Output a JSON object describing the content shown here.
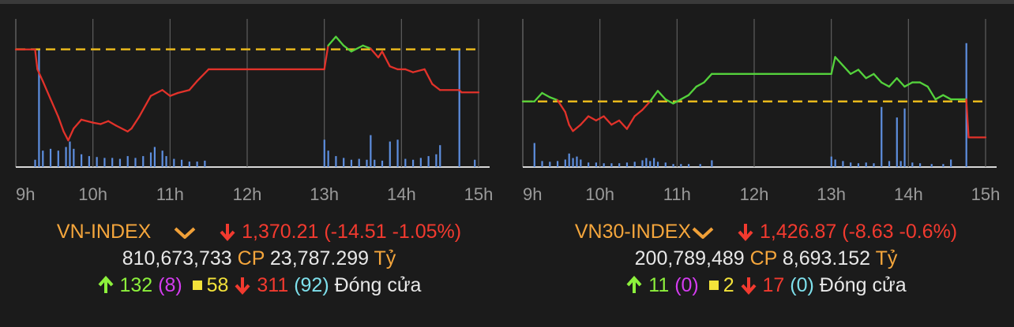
{
  "colors": {
    "background": "#1b1b1b",
    "grid": "#5e5e5e",
    "reference": "#e8b81c",
    "up": "#54d23c",
    "down": "#e2322a",
    "volume": "#5e8fe0"
  },
  "panels": [
    {
      "id": "vn",
      "index_name": "VN-INDEX",
      "value": "1,370.21",
      "change": "(-14.51 -1.05%)",
      "volume": "810,673,733",
      "cp_label": "CP",
      "turnover": "23,787.299",
      "unit": "Tỷ",
      "advances": "132",
      "ceiling": "(8)",
      "unchanged": "58",
      "declines": "311",
      "floor": "(92)",
      "status": "Đóng cửa"
    },
    {
      "id": "vn30",
      "index_name": "VN30-INDEX",
      "value": "1,426.87",
      "change": "(-8.63 -0.6%)",
      "volume": "200,789,489",
      "cp_label": "CP",
      "turnover": "8,693.152",
      "unit": "Tỷ",
      "advances": "11",
      "ceiling": "(0)",
      "unchanged": "2",
      "declines": "17",
      "floor": "(0)",
      "status": "Đóng cửa"
    }
  ],
  "chart_data": [
    {
      "type": "line",
      "title": "VN-INDEX",
      "x_ticks": [
        "9h",
        "10h",
        "11h",
        "12h",
        "13h",
        "14h",
        "15h"
      ],
      "reference": 1384.72,
      "close": 1370.21,
      "price": [
        [
          9.0,
          1384.7
        ],
        [
          9.25,
          1384.7
        ],
        [
          9.28,
          1378
        ],
        [
          9.35,
          1374
        ],
        [
          9.45,
          1368
        ],
        [
          9.55,
          1362
        ],
        [
          9.62,
          1357
        ],
        [
          9.68,
          1354
        ],
        [
          9.75,
          1358
        ],
        [
          9.85,
          1361
        ],
        [
          10.0,
          1360
        ],
        [
          10.1,
          1359.5
        ],
        [
          10.2,
          1360.5
        ],
        [
          10.3,
          1359
        ],
        [
          10.45,
          1357
        ],
        [
          10.5,
          1358
        ],
        [
          10.6,
          1362
        ],
        [
          10.75,
          1369
        ],
        [
          10.9,
          1371
        ],
        [
          11.0,
          1369
        ],
        [
          11.1,
          1370
        ],
        [
          11.25,
          1371
        ],
        [
          11.35,
          1374
        ],
        [
          11.5,
          1378
        ],
        [
          12.0,
          1378
        ],
        [
          13.0,
          1378
        ],
        [
          13.05,
          1386
        ],
        [
          13.15,
          1389
        ],
        [
          13.25,
          1386
        ],
        [
          13.35,
          1384
        ],
        [
          13.5,
          1386
        ],
        [
          13.6,
          1385
        ],
        [
          13.7,
          1382
        ],
        [
          13.75,
          1384
        ],
        [
          13.85,
          1379
        ],
        [
          13.95,
          1378
        ],
        [
          14.05,
          1378
        ],
        [
          14.15,
          1377
        ],
        [
          14.3,
          1378
        ],
        [
          14.4,
          1373
        ],
        [
          14.5,
          1371
        ],
        [
          14.75,
          1371
        ],
        [
          14.78,
          1370.2
        ],
        [
          15.0,
          1370.2
        ]
      ],
      "volume": [
        [
          9.25,
          8
        ],
        [
          9.3,
          130
        ],
        [
          9.35,
          18
        ],
        [
          9.45,
          20
        ],
        [
          9.55,
          18
        ],
        [
          9.65,
          22
        ],
        [
          9.7,
          28
        ],
        [
          9.75,
          20
        ],
        [
          9.85,
          14
        ],
        [
          9.95,
          12
        ],
        [
          10.05,
          11
        ],
        [
          10.15,
          10
        ],
        [
          10.25,
          10
        ],
        [
          10.35,
          9
        ],
        [
          10.45,
          12
        ],
        [
          10.55,
          10
        ],
        [
          10.65,
          12
        ],
        [
          10.75,
          16
        ],
        [
          10.8,
          22
        ],
        [
          10.9,
          18
        ],
        [
          10.95,
          12
        ],
        [
          11.05,
          9
        ],
        [
          11.15,
          8
        ],
        [
          11.25,
          6
        ],
        [
          11.35,
          6
        ],
        [
          11.45,
          7
        ],
        [
          13.0,
          30
        ],
        [
          13.05,
          18
        ],
        [
          13.15,
          12
        ],
        [
          13.25,
          10
        ],
        [
          13.35,
          8
        ],
        [
          13.45,
          9
        ],
        [
          13.55,
          8
        ],
        [
          13.6,
          35
        ],
        [
          13.65,
          8
        ],
        [
          13.75,
          7
        ],
        [
          13.85,
          28
        ],
        [
          13.95,
          30
        ],
        [
          14.05,
          9
        ],
        [
          14.15,
          8
        ],
        [
          14.25,
          10
        ],
        [
          14.35,
          12
        ],
        [
          14.45,
          14
        ],
        [
          14.5,
          24
        ],
        [
          14.75,
          130
        ],
        [
          14.95,
          8
        ]
      ]
    },
    {
      "type": "line",
      "title": "VN30-INDEX",
      "x_ticks": [
        "9h",
        "10h",
        "11h",
        "12h",
        "13h",
        "14h",
        "15h"
      ],
      "reference": 1435.5,
      "close": 1426.87,
      "price": [
        [
          9.0,
          1435.5
        ],
        [
          9.15,
          1435.5
        ],
        [
          9.25,
          1437.5
        ],
        [
          9.35,
          1436.5
        ],
        [
          9.45,
          1435.8
        ],
        [
          9.55,
          1433
        ],
        [
          9.6,
          1430
        ],
        [
          9.65,
          1428.5
        ],
        [
          9.75,
          1430
        ],
        [
          9.85,
          1432
        ],
        [
          9.95,
          1431
        ],
        [
          10.05,
          1432
        ],
        [
          10.15,
          1430
        ],
        [
          10.25,
          1431
        ],
        [
          10.35,
          1429
        ],
        [
          10.45,
          1432
        ],
        [
          10.55,
          1433.5
        ],
        [
          10.65,
          1435.5
        ],
        [
          10.75,
          1438
        ],
        [
          10.85,
          1436
        ],
        [
          10.95,
          1435
        ],
        [
          11.05,
          1436
        ],
        [
          11.15,
          1437
        ],
        [
          11.25,
          1439
        ],
        [
          11.35,
          1440
        ],
        [
          11.45,
          1442
        ],
        [
          12.0,
          1442
        ],
        [
          13.0,
          1442
        ],
        [
          13.05,
          1446
        ],
        [
          13.15,
          1444
        ],
        [
          13.25,
          1442
        ],
        [
          13.35,
          1443
        ],
        [
          13.45,
          1441
        ],
        [
          13.55,
          1442
        ],
        [
          13.65,
          1440
        ],
        [
          13.75,
          1439
        ],
        [
          13.85,
          1441
        ],
        [
          13.95,
          1439
        ],
        [
          14.05,
          1440
        ],
        [
          14.15,
          1440
        ],
        [
          14.25,
          1439
        ],
        [
          14.35,
          1436
        ],
        [
          14.45,
          1437
        ],
        [
          14.55,
          1436
        ],
        [
          14.75,
          1436
        ],
        [
          14.78,
          1427
        ],
        [
          15.0,
          1427
        ]
      ],
      "volume": [
        [
          9.15,
          32
        ],
        [
          9.25,
          8
        ],
        [
          9.35,
          7
        ],
        [
          9.45,
          8
        ],
        [
          9.55,
          10
        ],
        [
          9.6,
          18
        ],
        [
          9.65,
          12
        ],
        [
          9.7,
          14
        ],
        [
          9.75,
          10
        ],
        [
          9.85,
          6
        ],
        [
          9.95,
          6
        ],
        [
          10.05,
          5
        ],
        [
          10.15,
          5
        ],
        [
          10.25,
          5
        ],
        [
          10.35,
          6
        ],
        [
          10.45,
          7
        ],
        [
          10.55,
          9
        ],
        [
          10.6,
          12
        ],
        [
          10.65,
          8
        ],
        [
          10.7,
          12
        ],
        [
          10.75,
          7
        ],
        [
          10.85,
          6
        ],
        [
          10.95,
          4
        ],
        [
          11.05,
          4
        ],
        [
          11.15,
          4
        ],
        [
          11.3,
          4
        ],
        [
          11.45,
          9
        ],
        [
          13.0,
          14
        ],
        [
          13.05,
          10
        ],
        [
          13.15,
          8
        ],
        [
          13.25,
          6
        ],
        [
          13.35,
          5
        ],
        [
          13.45,
          6
        ],
        [
          13.55,
          5
        ],
        [
          13.65,
          80
        ],
        [
          13.75,
          8
        ],
        [
          13.85,
          66
        ],
        [
          13.9,
          8
        ],
        [
          13.95,
          78
        ],
        [
          14.05,
          6
        ],
        [
          14.15,
          5
        ],
        [
          14.3,
          4
        ],
        [
          14.45,
          4
        ],
        [
          14.55,
          10
        ],
        [
          14.75,
          165
        ]
      ]
    }
  ]
}
